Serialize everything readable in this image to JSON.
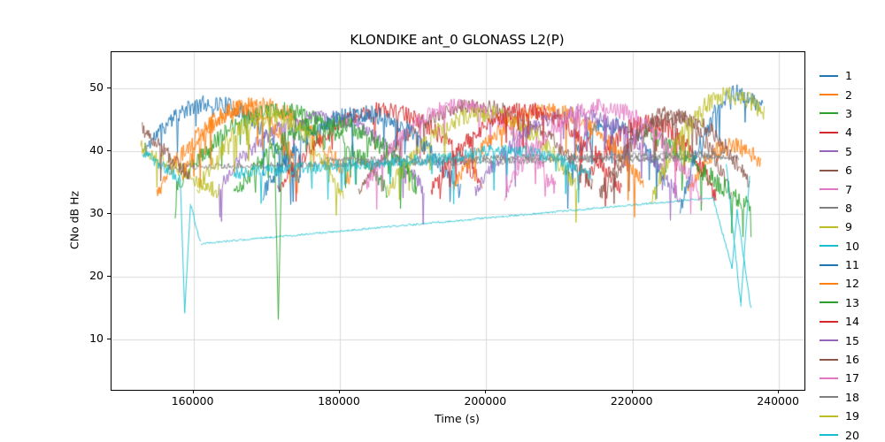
{
  "chart_data": {
    "type": "line",
    "title": "KLONDIKE ant_0 GLONASS L2(P)",
    "xlabel": "Time (s)",
    "ylabel": "CNo dB Hz",
    "xlim": [
      148800,
      243500
    ],
    "ylim": [
      2,
      55.8
    ],
    "grid": true,
    "grid_color": "#d0d0d0",
    "legend_position": "outside-right",
    "xticks": [
      {
        "v": 160000,
        "label": "160000"
      },
      {
        "v": 180000,
        "label": "180000"
      },
      {
        "v": 200000,
        "label": "200000"
      },
      {
        "v": 220000,
        "label": "220000"
      },
      {
        "v": 240000,
        "label": "240000"
      }
    ],
    "yticks": [
      {
        "v": 10,
        "label": "10"
      },
      {
        "v": 20,
        "label": "20"
      },
      {
        "v": 30,
        "label": "30"
      },
      {
        "v": 40,
        "label": "40"
      },
      {
        "v": 50,
        "label": "50"
      }
    ],
    "series": [
      {
        "name": "1",
        "color": "#1f77b4",
        "segments": [
          {
            "t0": 153200,
            "t1": 174500,
            "v0": 40,
            "p": 47.5,
            "v1": 35,
            "n": 1.4
          },
          {
            "t0": 210500,
            "t1": 224500,
            "v0": 36,
            "p": 44.5,
            "v1": 35,
            "n": 1.3
          }
        ]
      },
      {
        "name": "2",
        "color": "#ff7f0e",
        "segments": [
          {
            "t0": 155000,
            "t1": 181500,
            "v0": 33.5,
            "p": 47.3,
            "v1": 35,
            "n": 1.4
          },
          {
            "t0": 227500,
            "t1": 237500,
            "v0": 34,
            "p": 40.5,
            "v1": 38.5,
            "n": 1.6
          }
        ]
      },
      {
        "name": "3",
        "color": "#2ca02c",
        "segments": [
          {
            "t0": 157500,
            "t1": 186500,
            "v0": 34,
            "p": 46.5,
            "v1": 33.5,
            "n": 1.4
          }
        ]
      },
      {
        "name": "4",
        "color": "#d62728",
        "segments": [
          {
            "t0": 171500,
            "t1": 199500,
            "v0": 33.5,
            "p": 46.5,
            "v1": 34.5,
            "n": 1.4
          },
          {
            "t0": 213500,
            "t1": 231500,
            "v0": 34.5,
            "p": 44.5,
            "v1": 32.5,
            "n": 1.5
          }
        ]
      },
      {
        "name": "5",
        "color": "#9467bd",
        "segments": [
          {
            "t0": 163500,
            "t1": 191500,
            "v0": 34.5,
            "p": 45.5,
            "v1": 34,
            "n": 1.2
          }
        ]
      },
      {
        "name": "6",
        "color": "#8c564b",
        "segments": [
          {
            "t0": 182500,
            "t1": 214500,
            "v0": 34,
            "p": 47.2,
            "v1": 34.5,
            "n": 1.2
          },
          {
            "t0": 217000,
            "t1": 233500,
            "v0": 33.5,
            "p": 46,
            "v1": 33,
            "n": 1.4
          }
        ]
      },
      {
        "name": "7",
        "color": "#e377c2",
        "segments": [
          {
            "t0": 183500,
            "t1": 209500,
            "v0": 34.5,
            "p": 47.2,
            "v1": 34,
            "n": 1.3
          }
        ]
      },
      {
        "name": "8",
        "color": "#7f7f7f",
        "segments": [
          {
            "t0": 156000,
            "t1": 234500,
            "v0": 37.5,
            "v1": 39,
            "n": 0.5
          }
        ]
      },
      {
        "name": "9",
        "color": "#bcbd22",
        "segments": [
          {
            "t0": 152800,
            "t1": 163500,
            "v0": 40.5,
            "v1": 33.5,
            "n": 1.3
          },
          {
            "t0": 186500,
            "t1": 212500,
            "v0": 33.5,
            "p": 46,
            "v1": 34,
            "n": 1.4
          }
        ]
      },
      {
        "name": "10",
        "color": "#17becf",
        "segments": [
          {
            "t0": 153000,
            "t1": 158200,
            "v0": 40,
            "v1": 35.5,
            "n": 0.9
          },
          {
            "t0": 158200,
            "t1": 158800,
            "v0": 35.5,
            "v1": 14.2,
            "n": 0.2
          },
          {
            "t0": 158800,
            "t1": 159600,
            "v0": 14.2,
            "v1": 31.5,
            "n": 0.3
          },
          {
            "t0": 159600,
            "t1": 161000,
            "v0": 31.5,
            "v1": 25.3,
            "n": 0.4
          },
          {
            "t0": 161000,
            "t1": 231000,
            "v0": 25.3,
            "v1": 32.6,
            "n": 0.15
          },
          {
            "t0": 231000,
            "t1": 233600,
            "v0": 32.6,
            "v1": 21.5,
            "n": 0.3
          },
          {
            "t0": 233600,
            "t1": 234300,
            "v0": 21.5,
            "v1": 30.5,
            "n": 0.3
          },
          {
            "t0": 234300,
            "t1": 236200,
            "v0": 30.5,
            "v1": 14.8,
            "n": 0.3
          }
        ]
      },
      {
        "name": "11",
        "color": "#1f77b4",
        "segments": [
          {
            "t0": 169500,
            "t1": 196500,
            "v0": 33.5,
            "p": 46,
            "v1": 33.5,
            "n": 1.4
          },
          {
            "t0": 226500,
            "t1": 237800,
            "v0": 30.5,
            "p": 47.5,
            "v1": 46.5,
            "n": 1.5
          }
        ]
      },
      {
        "name": "12",
        "color": "#ff7f0e",
        "segments": [
          {
            "t0": 158500,
            "t1": 174500,
            "v0": 36,
            "p": 47,
            "v1": 37,
            "n": 1.4
          },
          {
            "t0": 195500,
            "t1": 221500,
            "v0": 34.5,
            "p": 46.5,
            "v1": 34.5,
            "n": 1.4
          }
        ]
      },
      {
        "name": "13",
        "color": "#2ca02c",
        "segments": [
          {
            "t0": 165500,
            "t1": 190500,
            "v0": 32.5,
            "p": 44.5,
            "v1": 34.5,
            "n": 1.6
          },
          {
            "t0": 171100,
            "t1": 171600,
            "v0": 40,
            "v1": 13.2,
            "n": 0.3
          },
          {
            "t0": 171600,
            "t1": 172100,
            "v0": 13.2,
            "v1": 40.5,
            "n": 0.3
          },
          {
            "t0": 221500,
            "t1": 236200,
            "v0": 44,
            "v1": 31,
            "n": 1.6
          }
        ]
      },
      {
        "name": "14",
        "color": "#d62728",
        "segments": [
          {
            "t0": 192500,
            "t1": 218500,
            "v0": 33.5,
            "p": 46.5,
            "v1": 33.5,
            "n": 1.4
          }
        ]
      },
      {
        "name": "15",
        "color": "#9467bd",
        "segments": [
          {
            "t0": 198500,
            "t1": 226500,
            "v0": 33.5,
            "p": 46,
            "v1": 32.5,
            "n": 1.2
          }
        ]
      },
      {
        "name": "16",
        "color": "#8c564b",
        "segments": [
          {
            "t0": 153000,
            "t1": 159500,
            "v0": 43.5,
            "v1": 36,
            "n": 1.2
          },
          {
            "t0": 215500,
            "t1": 236000,
            "v0": 33,
            "p": 45.5,
            "v1": 34.5,
            "n": 1.4
          }
        ]
      },
      {
        "name": "17",
        "color": "#e377c2",
        "segments": [
          {
            "t0": 202500,
            "t1": 229500,
            "v0": 33.5,
            "p": 47,
            "v1": 32.5,
            "n": 1.4
          }
        ]
      },
      {
        "name": "18",
        "color": "#7f7f7f",
        "segments": [
          {
            "t0": 177500,
            "t1": 232500,
            "v0": 38.5,
            "v1": 39.5,
            "n": 0.6
          }
        ]
      },
      {
        "name": "19",
        "color": "#bcbd22",
        "segments": [
          {
            "t0": 160500,
            "t1": 180500,
            "v0": 33.5,
            "p": 45.5,
            "v1": 33,
            "n": 1.5
          },
          {
            "t0": 222500,
            "t1": 238000,
            "v0": 32.5,
            "p": 47.5,
            "v1": 46,
            "n": 1.5
          }
        ]
      },
      {
        "name": "20",
        "color": "#17becf",
        "segments": [
          {
            "t0": 165500,
            "t1": 196000,
            "v0": 36.5,
            "v1": 39,
            "n": 1.0
          },
          {
            "t0": 196000,
            "t1": 214500,
            "v0": 39,
            "p": 40,
            "v1": 36,
            "n": 1.0
          },
          {
            "t0": 232800,
            "t1": 234800,
            "v0": 38,
            "v1": 15.5,
            "n": 0.4
          },
          {
            "t0": 234800,
            "t1": 236000,
            "v0": 15.5,
            "v1": 36,
            "n": 0.4
          }
        ]
      }
    ]
  }
}
